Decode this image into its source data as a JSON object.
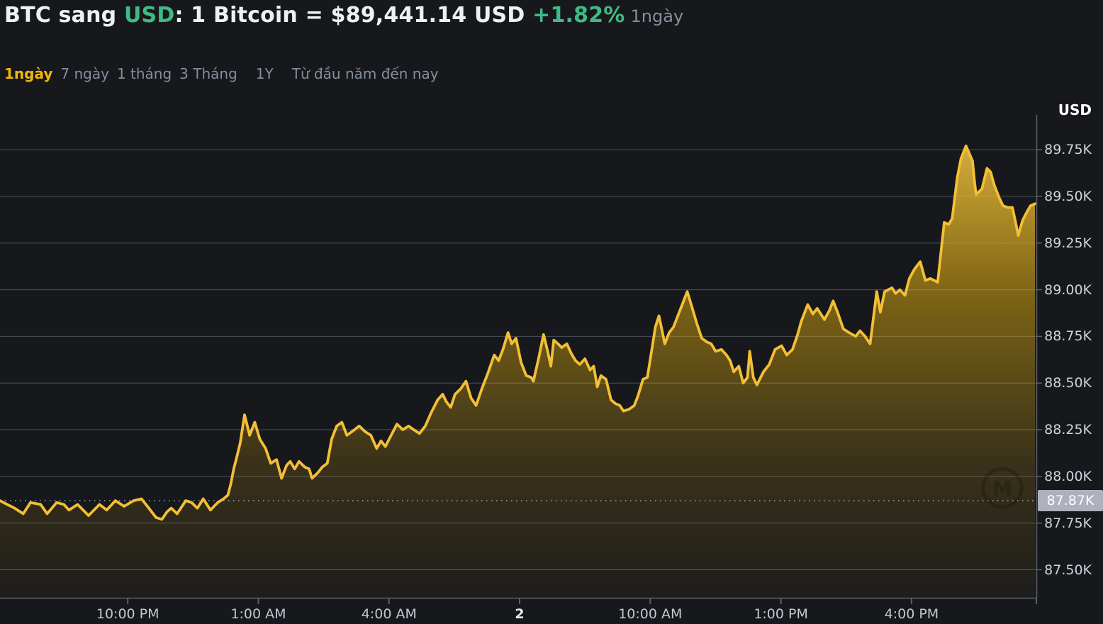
{
  "header": {
    "title_prefix": "BTC sang ",
    "quote_currency": "USD",
    "title_body": ": 1 Bitcoin = $89,441.14 USD ",
    "change_percent": "+1.82%",
    "range_label": "1ngày"
  },
  "tabs": [
    {
      "id": "1d",
      "label": "1ngày",
      "active": true
    },
    {
      "id": "7d",
      "label": "7 ngày",
      "active": false
    },
    {
      "id": "1m",
      "label": "1 tháng",
      "active": false
    },
    {
      "id": "3m",
      "label": "3 Tháng",
      "active": false
    },
    {
      "id": "1y",
      "label": "1Y",
      "active": false,
      "gap": true
    },
    {
      "id": "ytd",
      "label": "Từ đầu năm đến nay",
      "active": false,
      "gap": true
    }
  ],
  "chart_axis": {
    "usd_header": "USD",
    "last_price_badge": "87.87K"
  },
  "colors": {
    "background": "#17181c",
    "line": "#f3bf35",
    "fill_top": "#f6c644",
    "fill_base": "#f0b90b",
    "grid": "#4a505a",
    "axis": "#5a606b",
    "dotted": "#a7adb8",
    "green": "#3fba87",
    "tab_active": "#f0b90b",
    "muted": "#848e9c",
    "y_label": "#ced3dc",
    "x_label": "#c2c7d1",
    "badge_bg": "#aeb1bb",
    "badge_text": "#ffffff"
  },
  "chart_data": {
    "type": "area",
    "title": "BTC to USD, 1-day price chart",
    "unit_label": "USD",
    "current_price_usd": 89441.14,
    "change_percent": "+1.82%",
    "previous_close_k": 87.87,
    "legend_position": "none",
    "grid": "horizontal",
    "y_axis_range_k": [
      87.35,
      90.02
    ],
    "y_ticks": [
      {
        "v": 89.75,
        "label": "89.75K"
      },
      {
        "v": 89.5,
        "label": "89.50K"
      },
      {
        "v": 89.25,
        "label": "89.25K"
      },
      {
        "v": 89.0,
        "label": "89.00K"
      },
      {
        "v": 88.75,
        "label": "88.75K"
      },
      {
        "v": 88.5,
        "label": "88.50K"
      },
      {
        "v": 88.25,
        "label": "88.25K"
      },
      {
        "v": 88.0,
        "label": "88.00K"
      },
      {
        "v": 87.75,
        "label": "87.75K"
      },
      {
        "v": 87.5,
        "label": "87.50K"
      }
    ],
    "t_max": 1428,
    "t_unit": "minutes from chart start (~7:00 PM day 1) to end (~6:50 PM day 2)",
    "x_ticks": [
      {
        "t": 176,
        "label": "10:00 PM",
        "bold": false
      },
      {
        "t": 356,
        "label": "1:00 AM",
        "bold": false
      },
      {
        "t": 536,
        "label": "4:00 AM",
        "bold": false
      },
      {
        "t": 716,
        "label": "2",
        "bold": true
      },
      {
        "t": 896,
        "label": "10:00 AM",
        "bold": false
      },
      {
        "t": 1076,
        "label": "1:00 PM",
        "bold": false
      },
      {
        "t": 1256,
        "label": "4:00 PM",
        "bold": false
      }
    ],
    "points": [
      [
        0,
        87.87
      ],
      [
        10,
        87.85
      ],
      [
        20,
        87.83
      ],
      [
        32,
        87.8
      ],
      [
        42,
        87.86
      ],
      [
        56,
        87.85
      ],
      [
        65,
        87.8
      ],
      [
        78,
        87.86
      ],
      [
        88,
        87.85
      ],
      [
        95,
        87.82
      ],
      [
        107,
        87.85
      ],
      [
        122,
        87.79
      ],
      [
        137,
        87.85
      ],
      [
        147,
        87.82
      ],
      [
        159,
        87.87
      ],
      [
        171,
        87.84
      ],
      [
        184,
        87.87
      ],
      [
        195,
        87.88
      ],
      [
        205,
        87.83
      ],
      [
        215,
        87.78
      ],
      [
        223,
        87.77
      ],
      [
        230,
        87.81
      ],
      [
        236,
        87.83
      ],
      [
        244,
        87.8
      ],
      [
        256,
        87.87
      ],
      [
        264,
        87.86
      ],
      [
        272,
        87.83
      ],
      [
        280,
        87.88
      ],
      [
        290,
        87.82
      ],
      [
        300,
        87.86
      ],
      [
        308,
        87.88
      ],
      [
        314,
        87.9
      ],
      [
        318,
        87.96
      ],
      [
        322,
        88.04
      ],
      [
        326,
        88.1
      ],
      [
        331,
        88.18
      ],
      [
        337,
        88.33
      ],
      [
        344,
        88.22
      ],
      [
        351,
        88.29
      ],
      [
        358,
        88.2
      ],
      [
        366,
        88.15
      ],
      [
        373,
        88.07
      ],
      [
        381,
        88.09
      ],
      [
        388,
        87.99
      ],
      [
        395,
        88.06
      ],
      [
        400,
        88.08
      ],
      [
        406,
        88.04
      ],
      [
        412,
        88.08
      ],
      [
        420,
        88.05
      ],
      [
        426,
        88.04
      ],
      [
        430,
        87.99
      ],
      [
        438,
        88.02
      ],
      [
        444,
        88.05
      ],
      [
        451,
        88.07
      ],
      [
        457,
        88.2
      ],
      [
        464,
        88.27
      ],
      [
        471,
        88.29
      ],
      [
        478,
        88.22
      ],
      [
        485,
        88.24
      ],
      [
        495,
        88.27
      ],
      [
        503,
        88.24
      ],
      [
        511,
        88.22
      ],
      [
        519,
        88.15
      ],
      [
        525,
        88.19
      ],
      [
        531,
        88.16
      ],
      [
        539,
        88.22
      ],
      [
        547,
        88.28
      ],
      [
        555,
        88.25
      ],
      [
        563,
        88.27
      ],
      [
        570,
        88.25
      ],
      [
        578,
        88.23
      ],
      [
        586,
        88.27
      ],
      [
        594,
        88.34
      ],
      [
        603,
        88.41
      ],
      [
        610,
        88.44
      ],
      [
        615,
        88.4
      ],
      [
        621,
        88.37
      ],
      [
        627,
        88.44
      ],
      [
        635,
        88.47
      ],
      [
        642,
        88.51
      ],
      [
        649,
        88.42
      ],
      [
        656,
        88.38
      ],
      [
        664,
        88.47
      ],
      [
        672,
        88.55
      ],
      [
        681,
        88.65
      ],
      [
        687,
        88.62
      ],
      [
        693,
        88.68
      ],
      [
        700,
        88.77
      ],
      [
        705,
        88.71
      ],
      [
        711,
        88.74
      ],
      [
        718,
        88.61
      ],
      [
        725,
        88.54
      ],
      [
        732,
        88.53
      ],
      [
        735,
        88.51
      ],
      [
        742,
        88.63
      ],
      [
        749,
        88.76
      ],
      [
        754,
        88.68
      ],
      [
        759,
        88.59
      ],
      [
        763,
        88.73
      ],
      [
        769,
        88.71
      ],
      [
        774,
        88.69
      ],
      [
        781,
        88.71
      ],
      [
        787,
        88.66
      ],
      [
        793,
        88.62
      ],
      [
        799,
        88.6
      ],
      [
        806,
        88.63
      ],
      [
        813,
        88.57
      ],
      [
        818,
        88.59
      ],
      [
        823,
        88.48
      ],
      [
        828,
        88.54
      ],
      [
        835,
        88.52
      ],
      [
        842,
        88.41
      ],
      [
        848,
        88.39
      ],
      [
        854,
        88.38
      ],
      [
        859,
        88.35
      ],
      [
        867,
        88.36
      ],
      [
        874,
        88.38
      ],
      [
        879,
        88.43
      ],
      [
        886,
        88.52
      ],
      [
        892,
        88.53
      ],
      [
        899,
        88.7
      ],
      [
        903,
        88.8
      ],
      [
        908,
        88.86
      ],
      [
        916,
        88.71
      ],
      [
        922,
        88.77
      ],
      [
        928,
        88.8
      ],
      [
        933,
        88.85
      ],
      [
        941,
        88.93
      ],
      [
        947,
        88.99
      ],
      [
        954,
        88.9
      ],
      [
        960,
        88.82
      ],
      [
        967,
        88.74
      ],
      [
        974,
        88.72
      ],
      [
        980,
        88.71
      ],
      [
        986,
        88.67
      ],
      [
        994,
        88.68
      ],
      [
        1001,
        88.65
      ],
      [
        1006,
        88.62
      ],
      [
        1011,
        88.56
      ],
      [
        1018,
        88.59
      ],
      [
        1024,
        88.5
      ],
      [
        1030,
        88.53
      ],
      [
        1033,
        88.67
      ],
      [
        1038,
        88.53
      ],
      [
        1043,
        88.49
      ],
      [
        1052,
        88.56
      ],
      [
        1060,
        88.6
      ],
      [
        1068,
        88.68
      ],
      [
        1077,
        88.7
      ],
      [
        1084,
        88.65
      ],
      [
        1092,
        88.68
      ],
      [
        1099,
        88.76
      ],
      [
        1104,
        88.83
      ],
      [
        1113,
        88.92
      ],
      [
        1120,
        88.87
      ],
      [
        1126,
        88.9
      ],
      [
        1136,
        88.84
      ],
      [
        1143,
        88.89
      ],
      [
        1148,
        88.94
      ],
      [
        1154,
        88.88
      ],
      [
        1162,
        88.79
      ],
      [
        1170,
        88.77
      ],
      [
        1179,
        88.75
      ],
      [
        1185,
        88.78
      ],
      [
        1192,
        88.75
      ],
      [
        1199,
        88.71
      ],
      [
        1208,
        88.99
      ],
      [
        1213,
        88.88
      ],
      [
        1219,
        88.99
      ],
      [
        1224,
        89.0
      ],
      [
        1229,
        89.01
      ],
      [
        1234,
        88.98
      ],
      [
        1240,
        89.0
      ],
      [
        1247,
        88.97
      ],
      [
        1253,
        89.06
      ],
      [
        1260,
        89.11
      ],
      [
        1268,
        89.15
      ],
      [
        1275,
        89.05
      ],
      [
        1282,
        89.06
      ],
      [
        1292,
        89.04
      ],
      [
        1301,
        89.36
      ],
      [
        1307,
        89.35
      ],
      [
        1312,
        89.38
      ],
      [
        1319,
        89.6
      ],
      [
        1324,
        89.7
      ],
      [
        1331,
        89.77
      ],
      [
        1340,
        89.69
      ],
      [
        1343,
        89.57
      ],
      [
        1345,
        89.51
      ],
      [
        1353,
        89.54
      ],
      [
        1360,
        89.65
      ],
      [
        1365,
        89.63
      ],
      [
        1370,
        89.56
      ],
      [
        1377,
        89.49
      ],
      [
        1382,
        89.45
      ],
      [
        1389,
        89.44
      ],
      [
        1395,
        89.44
      ],
      [
        1400,
        89.35
      ],
      [
        1403,
        89.29
      ],
      [
        1409,
        89.37
      ],
      [
        1414,
        89.41
      ],
      [
        1420,
        89.45
      ],
      [
        1426,
        89.46
      ]
    ]
  }
}
